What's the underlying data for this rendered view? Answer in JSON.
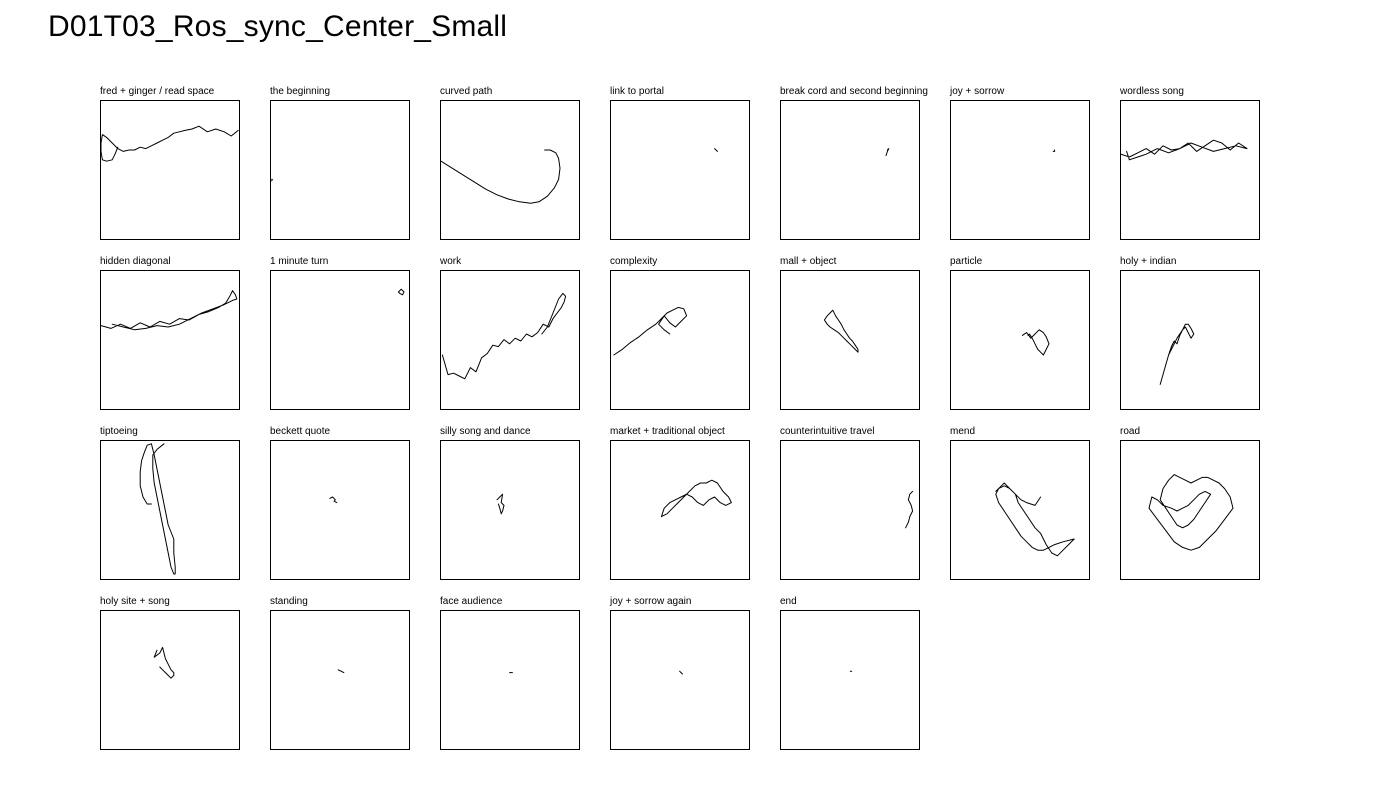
{
  "title": "D01T03_Ros_sync_Center_Small",
  "chart_data": {
    "type": "line",
    "xlim": [
      0,
      100
    ],
    "ylim": [
      0,
      100
    ],
    "axes_visible": false,
    "grid": false,
    "line_color": "#000000",
    "panels": [
      {
        "label": "fred + ginger / read space",
        "x": [
          98,
          93,
          88,
          82,
          76,
          70,
          65,
          60,
          56,
          52,
          48,
          44,
          40,
          36,
          32,
          28,
          24,
          20,
          16,
          12,
          8,
          4,
          1,
          0,
          0,
          1,
          4,
          8,
          10,
          12
        ],
        "y": [
          79,
          75,
          78,
          80,
          78,
          82,
          80,
          79,
          78,
          77,
          74,
          72,
          70,
          68,
          66,
          67,
          65,
          65,
          64,
          66,
          70,
          74,
          76,
          70,
          64,
          58,
          57,
          58,
          62,
          67
        ]
      },
      {
        "label": "the beginning",
        "x": [
          0.5,
          1,
          0.5
        ],
        "y": [
          43,
          44,
          44
        ]
      },
      {
        "label": "curved path",
        "x": [
          0,
          8,
          16,
          24,
          32,
          40,
          48,
          56,
          64,
          70,
          76,
          81,
          84,
          85,
          84,
          82,
          78,
          74
        ],
        "y": [
          57,
          52,
          47,
          42,
          37,
          33,
          30,
          28,
          27,
          28,
          32,
          38,
          44,
          52,
          59,
          63,
          65,
          65
        ]
      },
      {
        "label": "link to portal",
        "x": [
          74,
          75,
          76
        ],
        "y": [
          66,
          65,
          64
        ]
      },
      {
        "label": "break cord and second beginning",
        "x": [
          75,
          76,
          77,
          76
        ],
        "y": [
          61,
          64,
          66,
          65
        ]
      },
      {
        "label": "joy + sorrow",
        "x": [
          73,
          74,
          74
        ],
        "y": [
          64,
          64,
          65
        ]
      },
      {
        "label": "wordless song",
        "x": [
          0,
          6,
          12,
          18,
          24,
          30,
          36,
          42,
          48,
          54,
          60,
          66,
          72,
          78,
          84,
          90,
          82,
          74,
          66,
          58,
          50,
          42,
          34,
          26,
          18,
          12,
          6,
          4
        ],
        "y": [
          62,
          60,
          63,
          66,
          62,
          68,
          65,
          66,
          70,
          64,
          68,
          72,
          70,
          65,
          70,
          66,
          68,
          66,
          64,
          67,
          70,
          66,
          63,
          66,
          62,
          60,
          58,
          64
        ]
      },
      {
        "label": "hidden diagonal",
        "x": [
          0,
          7,
          14,
          21,
          28,
          35,
          42,
          49,
          56,
          63,
          70,
          77,
          84,
          89,
          92,
          94,
          96,
          97,
          94,
          88,
          80,
          72,
          64,
          56,
          48,
          40,
          32,
          24,
          16,
          8
        ],
        "y": [
          61,
          59,
          62,
          59,
          63,
          60,
          64,
          62,
          66,
          65,
          69,
          71,
          74,
          77,
          82,
          86,
          83,
          80,
          79,
          76,
          73,
          70,
          66,
          62,
          60,
          61,
          59,
          58,
          60,
          62
        ]
      },
      {
        "label": "1 minute turn",
        "x": [
          91,
          93,
          95,
          94,
          92,
          91
        ],
        "y": [
          85,
          87,
          85,
          83,
          84,
          85
        ]
      },
      {
        "label": "work",
        "x": [
          1,
          5,
          9,
          13,
          17,
          21,
          25,
          29,
          33,
          37,
          41,
          45,
          49,
          53,
          57,
          61,
          65,
          69,
          73,
          77,
          80,
          83,
          86,
          88,
          89,
          87,
          84,
          80,
          76,
          72
        ],
        "y": [
          40,
          26,
          27,
          25,
          23,
          31,
          28,
          38,
          41,
          47,
          46,
          51,
          48,
          52,
          50,
          55,
          53,
          56,
          62,
          60,
          66,
          70,
          74,
          78,
          82,
          84,
          80,
          70,
          60,
          55
        ]
      },
      {
        "label": "complexity",
        "x": [
          2,
          8,
          14,
          20,
          26,
          32,
          36,
          40,
          44,
          48,
          52,
          54,
          50,
          46,
          42,
          38,
          34,
          38,
          42
        ],
        "y": [
          40,
          44,
          49,
          53,
          58,
          62,
          66,
          70,
          72,
          74,
          73,
          68,
          64,
          60,
          63,
          68,
          62,
          58,
          55
        ]
      },
      {
        "label": "mall + object",
        "x": [
          31,
          33,
          35,
          37,
          39,
          41,
          43,
          45,
          47,
          49,
          51,
          53,
          55,
          55,
          53,
          50,
          47,
          44,
          41,
          38,
          35,
          33,
          31
        ],
        "y": [
          65,
          68,
          70,
          72,
          68,
          65,
          62,
          58,
          55,
          52,
          50,
          47,
          44,
          42,
          44,
          47,
          50,
          53,
          56,
          58,
          60,
          62,
          65
        ]
      },
      {
        "label": "particle",
        "x": [
          51,
          54,
          57,
          60,
          63,
          66,
          68,
          70,
          68,
          66,
          64,
          62,
          60,
          58,
          56,
          55
        ],
        "y": [
          54,
          56,
          52,
          55,
          58,
          56,
          53,
          48,
          44,
          40,
          42,
          44,
          48,
          52,
          55,
          54
        ]
      },
      {
        "label": "holy + indian",
        "x": [
          28,
          30,
          32,
          34,
          36,
          38,
          40,
          42,
          44,
          46,
          48,
          50,
          52,
          50,
          48,
          46,
          44,
          42,
          40,
          38,
          36,
          34
        ],
        "y": [
          19,
          26,
          33,
          40,
          46,
          50,
          48,
          54,
          58,
          62,
          62,
          59,
          55,
          52,
          56,
          60,
          58,
          55,
          52,
          48,
          44,
          40
        ]
      },
      {
        "label": "tiptoeing",
        "x": [
          45,
          40,
          37,
          37,
          38,
          40,
          42,
          44,
          46,
          48,
          50,
          52,
          53,
          53,
          52,
          52,
          48,
          46,
          44,
          42,
          40,
          38,
          36,
          33,
          31,
          29,
          28,
          28,
          30,
          33,
          36
        ],
        "y": [
          98,
          94,
          90,
          80,
          70,
          60,
          50,
          40,
          30,
          20,
          10,
          5,
          5,
          10,
          20,
          30,
          40,
          50,
          60,
          70,
          80,
          90,
          98,
          97,
          92,
          86,
          78,
          68,
          60,
          55,
          55
        ]
      },
      {
        "label": "beckett quote",
        "x": [
          42,
          44,
          46,
          45,
          47
        ],
        "y": [
          59,
          60,
          58,
          57,
          56
        ]
      },
      {
        "label": "silly song and dance",
        "x": [
          40,
          42,
          44,
          43,
          45,
          44,
          43,
          42,
          41
        ],
        "y": [
          58,
          60,
          62,
          56,
          54,
          50,
          48,
          52,
          55
        ]
      },
      {
        "label": "market + traditional object",
        "x": [
          36,
          40,
          44,
          48,
          52,
          56,
          60,
          64,
          68,
          72,
          76,
          80,
          84,
          86,
          82,
          78,
          74,
          70,
          66,
          62,
          58,
          54,
          50,
          46,
          42,
          38,
          36
        ],
        "y": [
          46,
          48,
          52,
          56,
          60,
          64,
          68,
          70,
          70,
          72,
          70,
          64,
          60,
          56,
          54,
          56,
          60,
          58,
          54,
          56,
          60,
          62,
          60,
          58,
          56,
          52,
          46
        ]
      },
      {
        "label": "counterintuitive travel",
        "x": [
          89,
          91,
          92,
          94,
          93,
          91,
          92,
          94
        ],
        "y": [
          38,
          42,
          46,
          50,
          54,
          58,
          62,
          64
        ]
      },
      {
        "label": "mend",
        "x": [
          32,
          36,
          38,
          42,
          46,
          48,
          52,
          56,
          60,
          64,
          68,
          72,
          76,
          80,
          84,
          88,
          80,
          74,
          70,
          66,
          62,
          58,
          54,
          50,
          46,
          42,
          38,
          34,
          32,
          34,
          38,
          42,
          46,
          50,
          54,
          60,
          64
        ],
        "y": [
          64,
          68,
          70,
          66,
          62,
          56,
          50,
          44,
          38,
          34,
          26,
          20,
          18,
          22,
          26,
          30,
          28,
          26,
          24,
          22,
          22,
          24,
          28,
          32,
          38,
          44,
          50,
          56,
          62,
          66,
          68,
          66,
          62,
          58,
          56,
          54,
          60
        ]
      },
      {
        "label": "road",
        "x": [
          20,
          26,
          32,
          38,
          44,
          50,
          56,
          62,
          68,
          74,
          80,
          78,
          74,
          70,
          66,
          62,
          58,
          54,
          50,
          46,
          42,
          38,
          34,
          30,
          28,
          32,
          36,
          40,
          44,
          48,
          52,
          56,
          60,
          64,
          60,
          56,
          52,
          48,
          44,
          40,
          36,
          30,
          26,
          22,
          20
        ],
        "y": [
          52,
          44,
          36,
          28,
          24,
          22,
          24,
          30,
          36,
          44,
          52,
          60,
          66,
          70,
          72,
          74,
          74,
          72,
          70,
          72,
          74,
          76,
          72,
          66,
          58,
          52,
          46,
          40,
          38,
          40,
          44,
          50,
          56,
          62,
          64,
          62,
          58,
          54,
          52,
          50,
          52,
          54,
          58,
          60,
          52
        ]
      },
      {
        "label": "holy site + song",
        "x": [
          40,
          38,
          42,
          44,
          46,
          48,
          50,
          52,
          52,
          50,
          48,
          46,
          44,
          42
        ],
        "y": [
          72,
          67,
          70,
          74,
          66,
          62,
          58,
          56,
          54,
          52,
          54,
          56,
          58,
          60
        ]
      },
      {
        "label": "standing",
        "x": [
          48,
          50,
          52
        ],
        "y": [
          58,
          57,
          56
        ]
      },
      {
        "label": "face audience",
        "x": [
          49,
          50,
          51
        ],
        "y": [
          56,
          56,
          56
        ]
      },
      {
        "label": "joy + sorrow again",
        "x": [
          49,
          50,
          51
        ],
        "y": [
          57,
          56,
          55
        ]
      },
      {
        "label": "end",
        "x": [
          49.5,
          50.5
        ],
        "y": [
          57,
          57
        ]
      }
    ]
  }
}
